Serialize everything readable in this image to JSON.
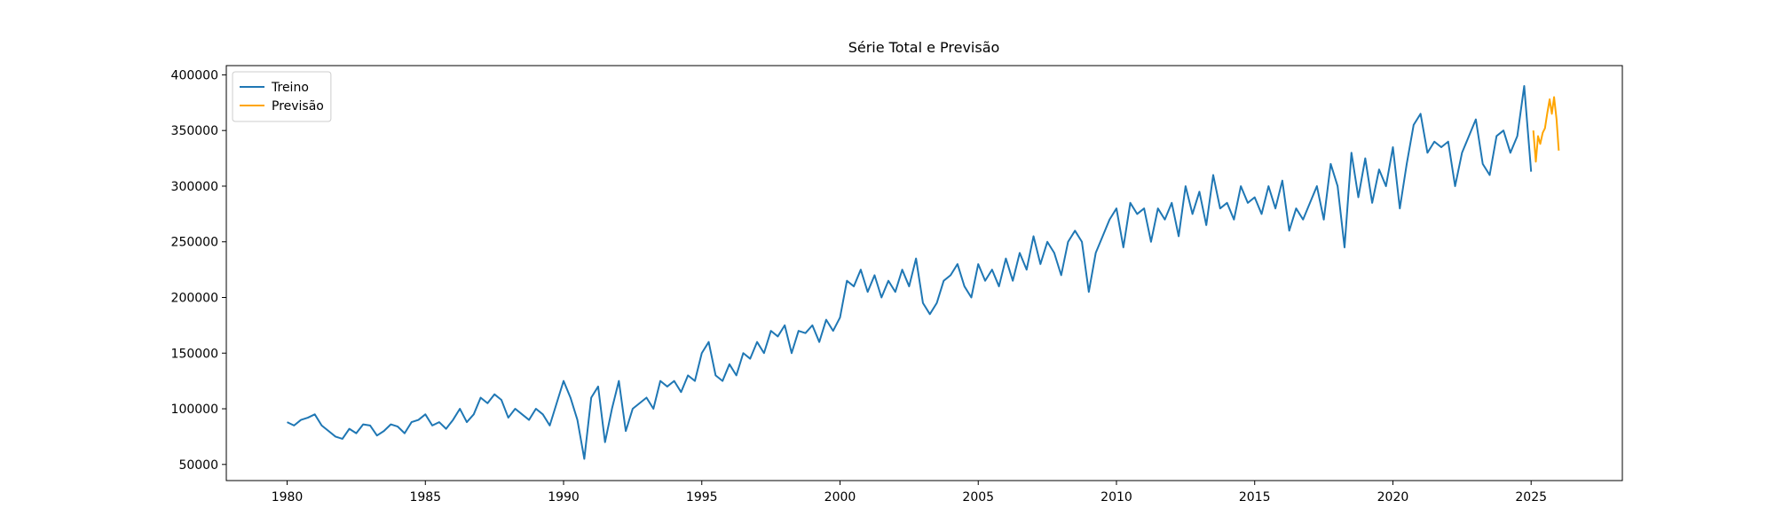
{
  "chart_data": {
    "type": "line",
    "title": "Série Total e Previsão",
    "xlim": [
      1977.8,
      2028.3
    ],
    "xticks": [
      1980,
      1985,
      1990,
      1995,
      2000,
      2005,
      2010,
      2015,
      2020,
      2025
    ],
    "ylim": [
      35500,
      408300
    ],
    "yticks": [
      50000,
      100000,
      150000,
      200000,
      250000,
      300000,
      350000,
      400000
    ],
    "legend": "upper left",
    "series": [
      {
        "name": "Treino",
        "color": "#1f77b4",
        "x": [
          1980,
          1980.25,
          1980.5,
          1980.75,
          1981,
          1981.25,
          1981.5,
          1981.75,
          1982,
          1982.25,
          1982.5,
          1982.75,
          1983,
          1983.25,
          1983.5,
          1983.75,
          1984,
          1984.25,
          1984.5,
          1984.75,
          1985,
          1985.25,
          1985.5,
          1985.75,
          1986,
          1986.25,
          1986.5,
          1986.75,
          1987,
          1987.25,
          1987.5,
          1987.75,
          1988,
          1988.25,
          1988.5,
          1988.75,
          1989,
          1989.25,
          1989.5,
          1989.75,
          1990,
          1990.25,
          1990.5,
          1990.75,
          1991,
          1991.25,
          1991.5,
          1991.75,
          1992,
          1992.25,
          1992.5,
          1992.75,
          1993,
          1993.25,
          1993.5,
          1993.75,
          1994,
          1994.25,
          1994.5,
          1994.75,
          1995,
          1995.25,
          1995.5,
          1995.75,
          1996,
          1996.25,
          1996.5,
          1996.75,
          1997,
          1997.25,
          1997.5,
          1997.75,
          1998,
          1998.25,
          1998.5,
          1998.75,
          1999,
          1999.25,
          1999.5,
          1999.75,
          2000,
          2000.25,
          2000.5,
          2000.75,
          2001,
          2001.25,
          2001.5,
          2001.75,
          2002,
          2002.25,
          2002.5,
          2002.75,
          2003,
          2003.25,
          2003.5,
          2003.75,
          2004,
          2004.25,
          2004.5,
          2004.75,
          2005,
          2005.25,
          2005.5,
          2005.75,
          2006,
          2006.25,
          2006.5,
          2006.75,
          2007,
          2007.25,
          2007.5,
          2007.75,
          2008,
          2008.25,
          2008.5,
          2008.75,
          2009,
          2009.25,
          2009.5,
          2009.75,
          2010,
          2010.25,
          2010.5,
          2010.75,
          2011,
          2011.25,
          2011.5,
          2011.75,
          2012,
          2012.25,
          2012.5,
          2012.75,
          2013,
          2013.25,
          2013.5,
          2013.75,
          2014,
          2014.25,
          2014.5,
          2014.75,
          2015,
          2015.25,
          2015.5,
          2015.75,
          2016,
          2016.25,
          2016.5,
          2016.75,
          2017,
          2017.25,
          2017.5,
          2017.75,
          2018,
          2018.25,
          2018.5,
          2018.75,
          2019,
          2019.25,
          2019.5,
          2019.75,
          2020,
          2020.25,
          2020.5,
          2020.75,
          2021,
          2021.25,
          2021.5,
          2021.75,
          2022,
          2022.25,
          2022.5,
          2022.75,
          2023,
          2023.25,
          2023.5,
          2023.75,
          2024,
          2024.25,
          2024.5,
          2024.75,
          2025
        ],
        "values": [
          88000,
          85000,
          90000,
          92000,
          95000,
          85000,
          80000,
          75000,
          73000,
          82000,
          78000,
          86000,
          85000,
          76000,
          80000,
          86000,
          84000,
          78000,
          88000,
          90000,
          95000,
          85000,
          88000,
          82000,
          90000,
          100000,
          88000,
          95000,
          110000,
          105000,
          113000,
          108000,
          92000,
          100000,
          95000,
          90000,
          100000,
          95000,
          85000,
          105000,
          125000,
          110000,
          90000,
          55000,
          110000,
          120000,
          70000,
          100000,
          125000,
          80000,
          100000,
          105000,
          110000,
          100000,
          125000,
          120000,
          125000,
          115000,
          130000,
          125000,
          150000,
          160000,
          130000,
          125000,
          140000,
          130000,
          150000,
          145000,
          160000,
          150000,
          170000,
          165000,
          175000,
          150000,
          170000,
          168000,
          175000,
          160000,
          180000,
          170000,
          182000,
          215000,
          210000,
          225000,
          205000,
          220000,
          200000,
          215000,
          205000,
          225000,
          210000,
          235000,
          195000,
          185000,
          195000,
          215000,
          220000,
          230000,
          210000,
          200000,
          230000,
          215000,
          225000,
          210000,
          235000,
          215000,
          240000,
          225000,
          255000,
          230000,
          250000,
          240000,
          220000,
          250000,
          260000,
          250000,
          205000,
          240000,
          255000,
          270000,
          280000,
          245000,
          285000,
          275000,
          280000,
          250000,
          280000,
          270000,
          285000,
          255000,
          300000,
          275000,
          295000,
          265000,
          310000,
          280000,
          285000,
          270000,
          300000,
          285000,
          290000,
          275000,
          300000,
          280000,
          305000,
          260000,
          280000,
          270000,
          285000,
          300000,
          270000,
          320000,
          300000,
          245000,
          330000,
          290000,
          325000,
          285000,
          315000,
          300000,
          335000,
          280000,
          320000,
          355000,
          365000,
          330000,
          340000,
          335000,
          340000,
          300000,
          330000,
          345000,
          360000,
          320000,
          310000,
          345000,
          350000,
          330000,
          345000,
          390000,
          313000
        ]
      },
      {
        "name": "Previsão",
        "color": "#ffa500",
        "x": [
          2025.08,
          2025.17,
          2025.25,
          2025.33,
          2025.42,
          2025.5,
          2025.58,
          2025.67,
          2025.75,
          2025.83,
          2025.92,
          2026
        ],
        "values": [
          350000,
          322000,
          345000,
          338000,
          348000,
          352000,
          365000,
          378000,
          365000,
          380000,
          360000,
          332000
        ]
      }
    ]
  }
}
